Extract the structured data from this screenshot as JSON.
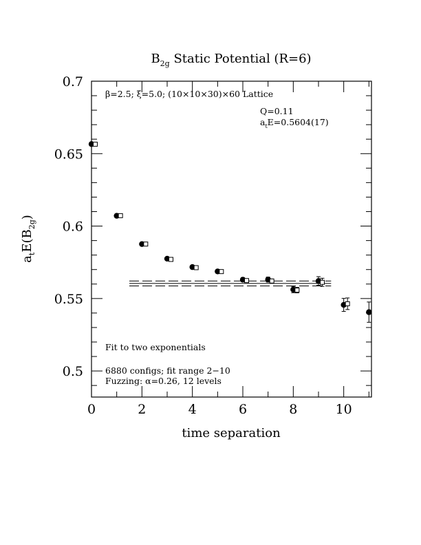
{
  "chart_data": {
    "type": "scatter",
    "title": {
      "base": "B",
      "sub": "2g",
      "rest": " Static Potential (R=6)"
    },
    "xlabel": "time separation",
    "ylabel": {
      "pre": "a",
      "pre_sub": "t",
      "mid": "E(B",
      "mid_sub": "2g",
      "post": ")"
    },
    "xlim": [
      0,
      11.1
    ],
    "ylim": [
      0.482,
      0.7
    ],
    "x_ticks": [
      {
        "value": 0,
        "label": "0"
      },
      {
        "value": 2,
        "label": "2"
      },
      {
        "value": 4,
        "label": "4"
      },
      {
        "value": 6,
        "label": "6"
      },
      {
        "value": 8,
        "label": "8"
      },
      {
        "value": 10,
        "label": "10"
      }
    ],
    "y_ticks": [
      {
        "value": 0.5,
        "label": "0.5"
      },
      {
        "value": 0.55,
        "label": "0.55"
      },
      {
        "value": 0.6,
        "label": "0.6"
      },
      {
        "value": 0.65,
        "label": "0.65"
      },
      {
        "value": 0.7,
        "label": "0.7"
      }
    ],
    "annotations": {
      "lattice": "β=2.5; ξ=5.0; (10×10×30)×60 Lattice",
      "q": "Q=0.11",
      "energy": {
        "pre": "a",
        "sub": "t",
        "post": "E=0.5604(17)"
      },
      "fit": "Fit to two exponentials",
      "configs": "6880 configs; fit range 2−10",
      "fuzzing": "Fuzzing: α=0.26, 12 levels"
    },
    "series": [
      {
        "marker": "filled-circle",
        "x": [
          0,
          1,
          2,
          3,
          4,
          5,
          6,
          7,
          8,
          9,
          10,
          11
        ],
        "y": [
          0.6566,
          0.6071,
          0.5876,
          0.5775,
          0.5717,
          0.5687,
          0.563,
          0.5631,
          0.5562,
          0.5621,
          0.5456,
          0.5406
        ],
        "err": [
          0.0006,
          0.0008,
          0.0008,
          0.0009,
          0.001,
          0.0012,
          0.0014,
          0.0017,
          0.0022,
          0.003,
          0.0045,
          0.007
        ]
      },
      {
        "marker": "open-square",
        "x": [
          0.15,
          1.15,
          2.15,
          3.15,
          4.15,
          5.15,
          6.15,
          7.15,
          8.15,
          9.15,
          10.15
        ],
        "y": [
          0.6565,
          0.6072,
          0.5876,
          0.577,
          0.5713,
          0.5686,
          0.5624,
          0.5621,
          0.5558,
          0.5612,
          0.5464
        ],
        "err": [
          0.0005,
          0.0007,
          0.0007,
          0.0008,
          0.0009,
          0.001,
          0.0012,
          0.0014,
          0.0019,
          0.0028,
          0.004
        ]
      }
    ],
    "fit": {
      "value": 0.5604,
      "error": 0.0017,
      "x_range": [
        1.5,
        9.5
      ]
    }
  }
}
